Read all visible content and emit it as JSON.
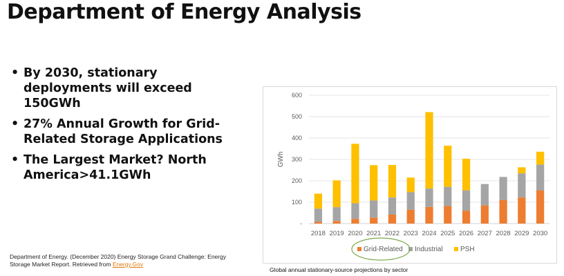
{
  "slide": {
    "title": "Department of Energy Analysis",
    "bullets": [
      "By 2030, stationary deployments will exceed 150GWh",
      "27% Annual Growth for Grid-Related Storage Applications",
      "The Largest Market? North America>41.1GWh"
    ],
    "citation_text": "Department of Energy. (December 2020) Energy Storage Grand Challenge: Energy Storage Market Report. Retrieved from ",
    "citation_link": "Energy.Gov",
    "caption": "Global annual stationary-source projections by sector"
  },
  "chart_data": {
    "type": "bar",
    "stacked": true,
    "title": "",
    "xlabel": "",
    "ylabel": "GWh",
    "ylim": [
      0,
      600
    ],
    "yticks": [
      0,
      100,
      200,
      300,
      400,
      500,
      600
    ],
    "grid": true,
    "legend_position": "bottom",
    "categories": [
      "2018",
      "2019",
      "2020",
      "2021",
      "2022",
      "2023",
      "2024",
      "2025",
      "2026",
      "2027",
      "2028",
      "2029",
      "2030"
    ],
    "series": [
      {
        "name": "Grid-Related",
        "color": "#ed7d31",
        "values": [
          8,
          12,
          22,
          28,
          42,
          65,
          78,
          82,
          60,
          85,
          110,
          122,
          155
        ]
      },
      {
        "name": "Industrial",
        "color": "#a5a5a5",
        "values": [
          62,
          65,
          73,
          80,
          80,
          82,
          86,
          90,
          95,
          100,
          108,
          113,
          121
        ]
      },
      {
        "name": "PSH",
        "color": "#ffc000",
        "values": [
          70,
          125,
          278,
          165,
          152,
          68,
          357,
          192,
          148,
          0,
          0,
          28,
          60
        ]
      }
    ],
    "axis_color": "#595959",
    "grid_color": "#e5e5e5",
    "highlight_color": "#7aa84a"
  }
}
